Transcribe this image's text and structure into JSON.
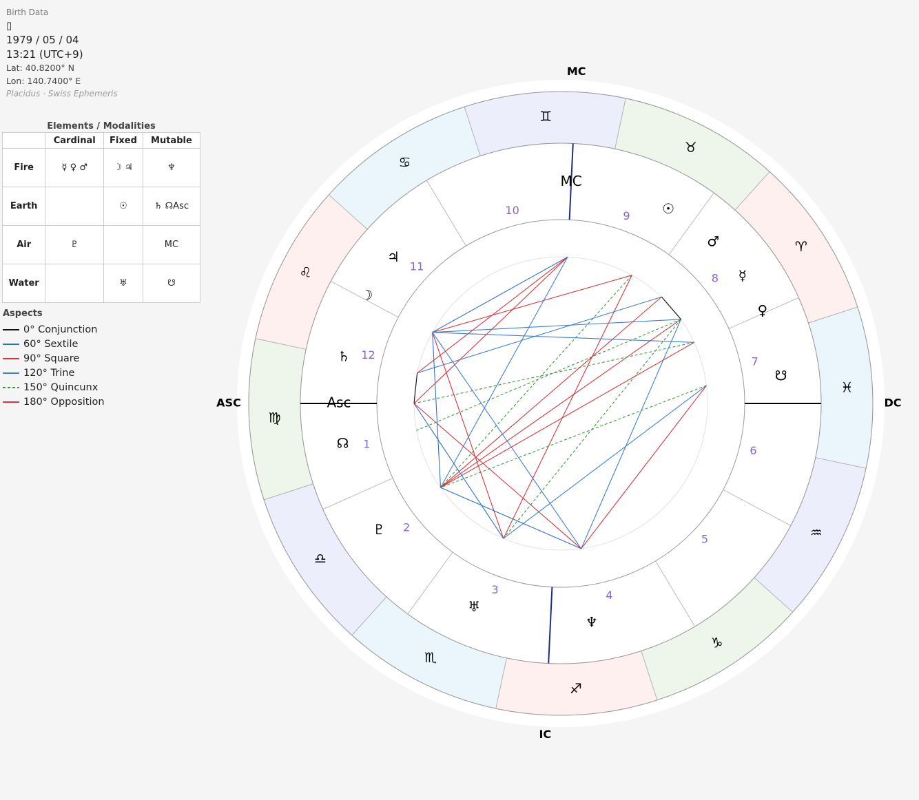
{
  "panel": {
    "title": "Birth Data",
    "icon": "▯",
    "date": "1979 / 05 / 04",
    "time": "13:21 (UTC+9)",
    "lat": "Lat: 40.8200° N",
    "lon": "Lon: 140.7400° E",
    "system": "Placidus · Swiss Ephemeris"
  },
  "table": {
    "title": "Elements / Modalities",
    "columns": [
      "Cardinal",
      "Fixed",
      "Mutable"
    ],
    "rows": [
      {
        "label": "Fire",
        "cells": [
          "☿ ♀ ♂",
          "☽ ♃",
          "♆"
        ]
      },
      {
        "label": "Earth",
        "cells": [
          null,
          "☉",
          "♄ ☊Asc"
        ]
      },
      {
        "label": "Air",
        "cells": [
          "♇",
          null,
          "MC"
        ]
      },
      {
        "label": "Water",
        "cells": [
          null,
          "♅",
          "☋"
        ]
      }
    ]
  },
  "aspects_legend": {
    "title": "Aspects",
    "types": [
      {
        "label": "0° Conjunction",
        "color": "#111111",
        "dashed": false
      },
      {
        "label": "60° Sextile",
        "color": "#2f6fd0",
        "dashed": false
      },
      {
        "label": "90° Square",
        "color": "#d8363a",
        "dashed": false
      },
      {
        "label": "120° Trine",
        "color": "#3f7fd6",
        "dashed": false
      },
      {
        "label": "150° Quincunx",
        "color": "#3a9a3a",
        "dashed": true
      },
      {
        "label": "180° Opposition",
        "color": "#d8363a",
        "dashed": false
      }
    ]
  },
  "wheel": {
    "signs": [
      {
        "glyph": "♈",
        "color": "#fdf0ee"
      },
      {
        "glyph": "♉",
        "color": "#eef6ec"
      },
      {
        "glyph": "♊",
        "color": "#eceffb"
      },
      {
        "glyph": "♋",
        "color": "#eaf6fb"
      },
      {
        "glyph": "♌",
        "color": "#fdf0ee"
      },
      {
        "glyph": "♍",
        "color": "#eef6ec"
      },
      {
        "glyph": "♎",
        "color": "#eceffb"
      },
      {
        "glyph": "♏",
        "color": "#eaf6fb"
      },
      {
        "glyph": "♐",
        "color": "#fdf0ee"
      },
      {
        "glyph": "♑",
        "color": "#eef6ec"
      },
      {
        "glyph": "♒",
        "color": "#eceffb"
      },
      {
        "glyph": "♓",
        "color": "#eaf6fb"
      }
    ],
    "houses": [
      {
        "label": "1",
        "cusp": 162
      },
      {
        "label": "2",
        "cusp": 186
      },
      {
        "label": "3",
        "cusp": 216
      },
      {
        "label": "4",
        "cusp": 249.3
      },
      {
        "label": "5",
        "cusp": 283
      },
      {
        "label": "6",
        "cusp": 314
      },
      {
        "label": "7",
        "cusp": 342
      },
      {
        "label": "8",
        "cusp": 6
      },
      {
        "label": "9",
        "cusp": 36
      },
      {
        "label": "10",
        "cusp": 69.3
      },
      {
        "label": "11",
        "cusp": 103
      },
      {
        "label": "12",
        "cusp": 134
      }
    ],
    "angle_labels": [
      {
        "label": "ASC",
        "lon": 162
      },
      {
        "label": "DC",
        "lon": 342
      },
      {
        "label": "MC",
        "lon": 69.3
      },
      {
        "label": "IC",
        "lon": 249.3
      }
    ],
    "points": [
      {
        "glyph": "☉",
        "lon": 43
      },
      {
        "glyph": "☽",
        "lon": 133
      },
      {
        "glyph": "☿",
        "lon": 17
      },
      {
        "glyph": "♀",
        "lon": 6.6
      },
      {
        "glyph": "♂",
        "lon": 28.6
      },
      {
        "glyph": "♃",
        "lon": 121
      },
      {
        "glyph": "♄",
        "lon": 150
      },
      {
        "glyph": "♅",
        "lon": 229
      },
      {
        "glyph": "♆",
        "lon": 260
      },
      {
        "glyph": "♇",
        "lon": 197
      },
      {
        "glyph": "☊",
        "lon": 172.6
      },
      {
        "glyph": "☋",
        "lon": 349
      },
      {
        "glyph": "Asc",
        "lon": 162
      },
      {
        "glyph": "MC",
        "lon": 69.3
      }
    ],
    "aspects": [
      [
        0,
        1,
        2
      ],
      [
        0,
        9,
        4
      ],
      [
        0,
        7,
        5
      ],
      [
        1,
        2,
        3
      ],
      [
        1,
        3,
        3
      ],
      [
        1,
        8,
        3
      ],
      [
        1,
        7,
        2
      ],
      [
        2,
        9,
        5
      ],
      [
        2,
        7,
        4
      ],
      [
        2,
        8,
        3
      ],
      [
        2,
        10,
        4
      ],
      [
        3,
        9,
        5
      ],
      [
        3,
        12,
        4
      ],
      [
        4,
        9,
        5
      ],
      [
        4,
        6,
        3
      ],
      [
        4,
        2,
        0
      ],
      [
        6,
        13,
        2
      ],
      [
        13,
        1,
        1
      ],
      [
        13,
        12,
        2
      ],
      [
        13,
        9,
        3
      ],
      [
        11,
        9,
        4
      ],
      [
        11,
        7,
        3
      ],
      [
        11,
        8,
        2
      ],
      [
        9,
        8,
        1
      ],
      [
        9,
        1,
        1
      ],
      [
        12,
        8,
        2
      ],
      [
        12,
        7,
        1
      ],
      [
        6,
        12,
        0
      ]
    ]
  }
}
